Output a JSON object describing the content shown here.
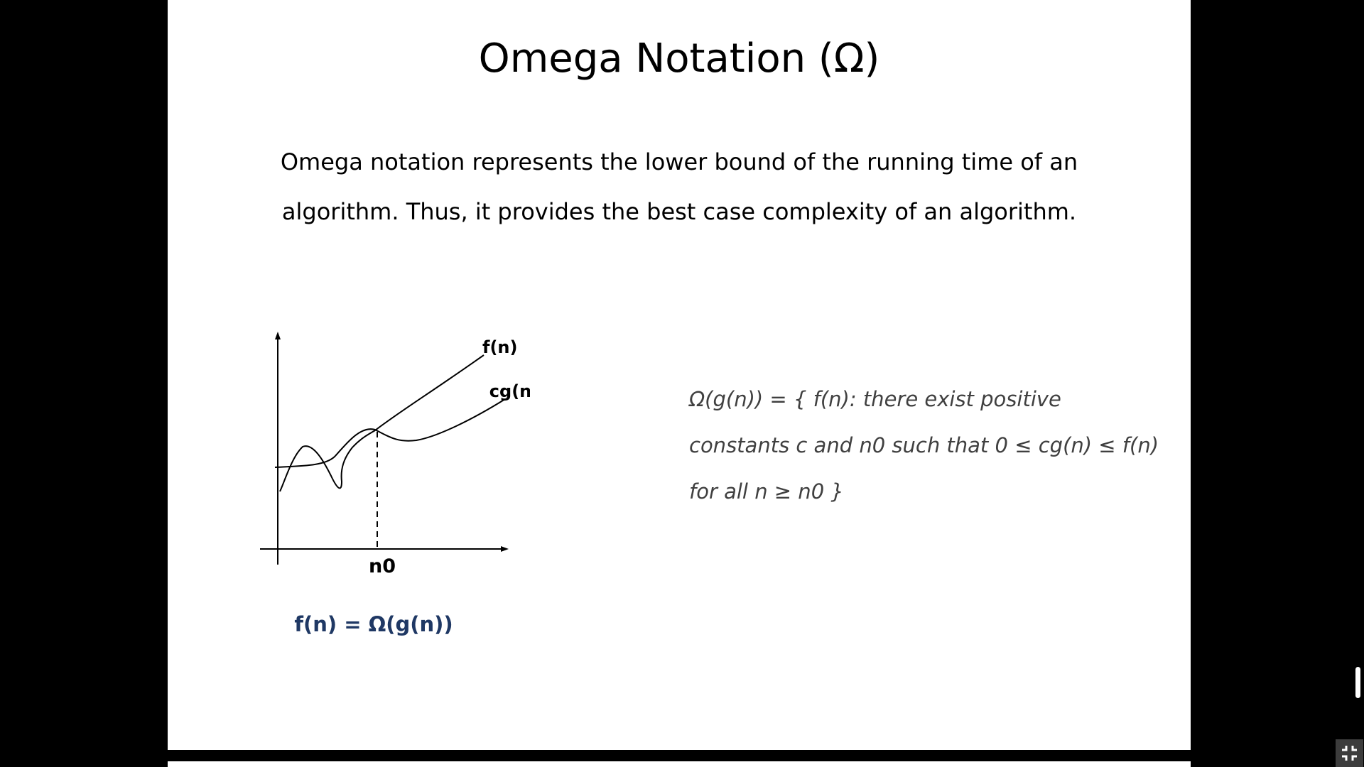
{
  "slide": {
    "title": "Omega Notation (Ω)",
    "body_lines": [
      "Omega notation represents the lower bound of the running time of an",
      "algorithm. Thus, it provides the best case complexity of an algorithm."
    ],
    "diagram": {
      "curve_upper_label": "f(n)",
      "curve_lower_label": "cg(n)",
      "x_marker_label": "n0"
    },
    "formula": "f(n) = Ω(g(n))",
    "definition_lines": [
      "Ω(g(n)) = { f(n): there exist positive",
      "constants c and n0 such that 0 ≤ cg(n) ≤ f(n)",
      "for all n ≥ n0 }"
    ]
  },
  "controls": {
    "exit_fullscreen_icon": "exit-fullscreen-icon"
  },
  "colors": {
    "background": "#000000",
    "slide": "#ffffff",
    "formula": "#1f3864",
    "definition": "#404040"
  }
}
